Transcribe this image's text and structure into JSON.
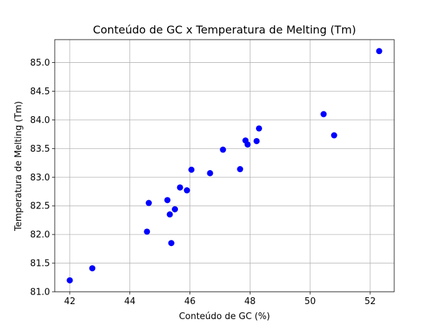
{
  "chart_data": {
    "type": "scatter",
    "title": "Conteúdo de GC x Temperatura de Melting (Tm)",
    "xlabel": "Conteúdo de GC (%)",
    "ylabel": "Temperatura de Melting (Tm)",
    "xlim": [
      41.5,
      52.8
    ],
    "ylim": [
      81.0,
      85.4
    ],
    "xticks": [
      42,
      44,
      46,
      48,
      50,
      52
    ],
    "xtick_labels": [
      "42",
      "44",
      "46",
      "48",
      "50",
      "52"
    ],
    "yticks": [
      81.0,
      81.5,
      82.0,
      82.5,
      83.0,
      83.5,
      84.0,
      84.5,
      85.0
    ],
    "ytick_labels": [
      "81.0",
      "81.5",
      "82.0",
      "82.5",
      "83.0",
      "83.5",
      "84.0",
      "84.5",
      "85.0"
    ],
    "grid": true,
    "marker_color": "#0000ff",
    "points": [
      {
        "x": 42.0,
        "y": 81.2
      },
      {
        "x": 42.75,
        "y": 81.41
      },
      {
        "x": 44.57,
        "y": 82.05
      },
      {
        "x": 44.63,
        "y": 82.55
      },
      {
        "x": 45.25,
        "y": 82.6
      },
      {
        "x": 45.33,
        "y": 82.35
      },
      {
        "x": 45.38,
        "y": 81.85
      },
      {
        "x": 45.5,
        "y": 82.44
      },
      {
        "x": 45.67,
        "y": 82.82
      },
      {
        "x": 45.9,
        "y": 82.77
      },
      {
        "x": 46.05,
        "y": 83.13
      },
      {
        "x": 46.67,
        "y": 83.07
      },
      {
        "x": 47.1,
        "y": 83.48
      },
      {
        "x": 47.67,
        "y": 83.14
      },
      {
        "x": 47.85,
        "y": 83.64
      },
      {
        "x": 47.92,
        "y": 83.57
      },
      {
        "x": 48.22,
        "y": 83.63
      },
      {
        "x": 48.3,
        "y": 83.85
      },
      {
        "x": 50.45,
        "y": 84.1
      },
      {
        "x": 50.8,
        "y": 83.73
      },
      {
        "x": 52.3,
        "y": 85.2
      }
    ]
  }
}
